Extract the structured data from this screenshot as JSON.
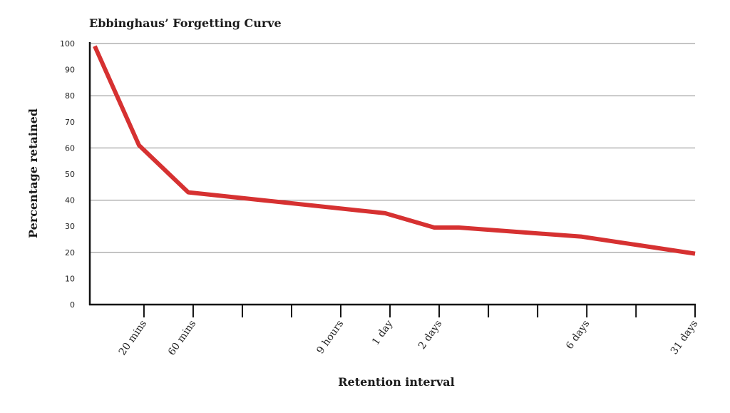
{
  "chart_data": {
    "type": "line",
    "title": "Ebbinghaus’ Forgetting Curve",
    "xlabel": "Retention interval",
    "ylabel": "Percentage retained",
    "ylim": [
      0,
      100
    ],
    "yticks": [
      0,
      10,
      20,
      30,
      40,
      50,
      60,
      70,
      80,
      90,
      100
    ],
    "grid": true,
    "line_color": "#d63131",
    "xticks": [
      {
        "pos": 1.1,
        "label": "20 mins"
      },
      {
        "pos": 2.1,
        "label": "60 mins"
      },
      {
        "pos": 3.1,
        "label": ""
      },
      {
        "pos": 4.1,
        "label": ""
      },
      {
        "pos": 5.1,
        "label": "9 hours"
      },
      {
        "pos": 6.1,
        "label": "1 day"
      },
      {
        "pos": 7.1,
        "label": "2 days"
      },
      {
        "pos": 8.1,
        "label": ""
      },
      {
        "pos": 9.1,
        "label": ""
      },
      {
        "pos": 10.1,
        "label": "6 days"
      },
      {
        "pos": 11.1,
        "label": ""
      },
      {
        "pos": 12.3,
        "label": "31 days"
      }
    ],
    "xlim": [
      0,
      12.3
    ],
    "series": [
      {
        "points": [
          {
            "x": 0.1,
            "y": 99
          },
          {
            "x": 1.0,
            "y": 61
          },
          {
            "x": 2.0,
            "y": 43
          },
          {
            "x": 3.5,
            "y": 40
          },
          {
            "x": 6.0,
            "y": 35
          },
          {
            "x": 7.0,
            "y": 29.5
          },
          {
            "x": 7.5,
            "y": 29.5
          },
          {
            "x": 10.0,
            "y": 26
          },
          {
            "x": 12.3,
            "y": 19.5
          }
        ]
      }
    ]
  }
}
